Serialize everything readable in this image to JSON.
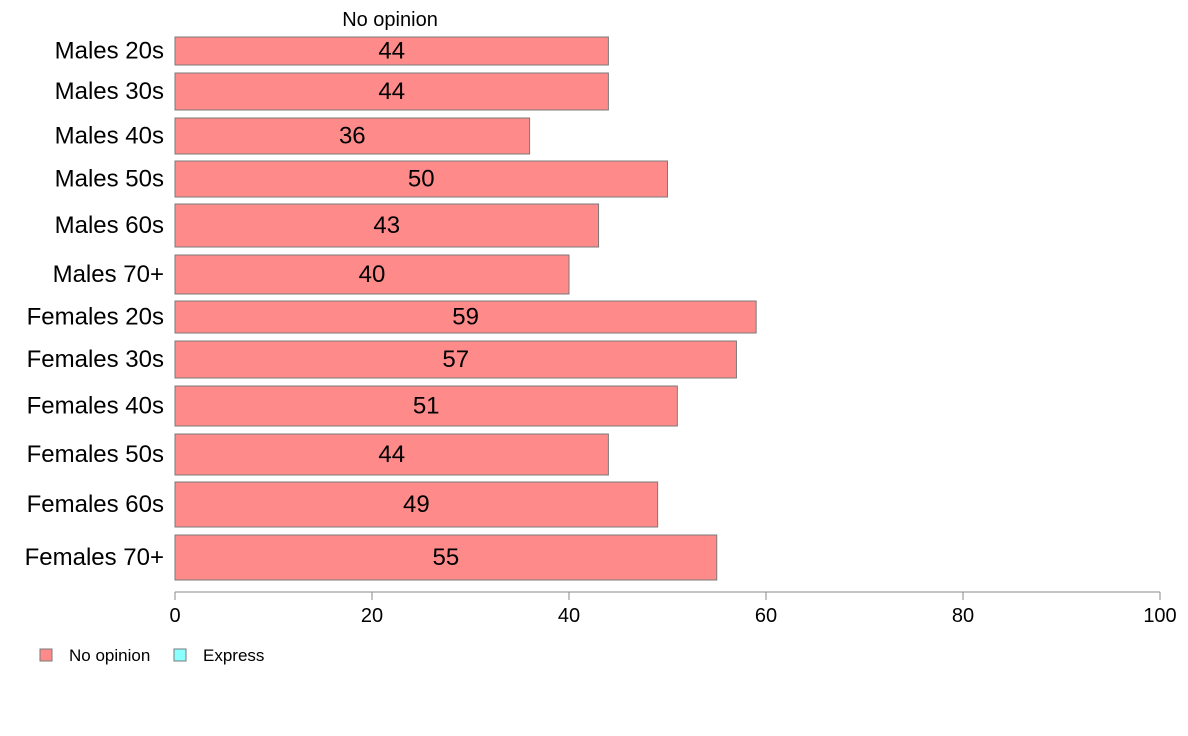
{
  "chart_data": {
    "type": "bar",
    "orientation": "horizontal",
    "series_title": "No opinion",
    "categories": [
      "Males 20s",
      "Males 30s",
      "Males 40s",
      "Males 50s",
      "Males 60s",
      "Males 70+",
      "Females 20s",
      "Females 30s",
      "Females 40s",
      "Females 50s",
      "Females 60s",
      "Females 70+"
    ],
    "series": [
      {
        "name": "No opinion",
        "color": "#ff8a8a",
        "values": [
          44,
          44,
          36,
          50,
          43,
          40,
          59,
          57,
          51,
          44,
          49,
          55
        ],
        "labels": [
          "44",
          "44",
          "36",
          "50",
          "43",
          "40",
          "59",
          "57",
          "51",
          "44",
          "49",
          "55"
        ]
      }
    ],
    "xlim": [
      0,
      100
    ],
    "xticks": [
      0,
      20,
      40,
      60,
      80,
      100
    ],
    "xtick_labels": [
      "0",
      "20",
      "40",
      "60",
      "80",
      "100"
    ],
    "grid": false,
    "legend": {
      "placement": "bottom-left",
      "items": [
        {
          "label": "No opinion",
          "color": "#ff8a8a"
        },
        {
          "label": "Express",
          "color": "#8affff"
        }
      ]
    }
  }
}
